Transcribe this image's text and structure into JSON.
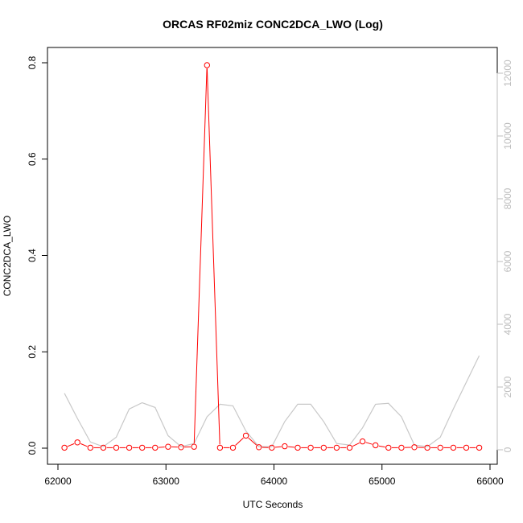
{
  "chart_data": {
    "type": "line",
    "title": "ORCAS RF02miz CONC2DCA_LWO (Log)",
    "xlabel": "UTC Seconds",
    "ylabel": "CONC2DCA_LWO",
    "xlim": [
      62000,
      66000
    ],
    "xticks": [
      62000,
      63000,
      64000,
      65000,
      66000
    ],
    "ylim": [
      0,
      0.8
    ],
    "yticks": [
      0.0,
      0.2,
      0.4,
      0.6,
      0.8
    ],
    "ytick_labels": [
      "0.0",
      "0.2",
      "0.4",
      "0.6",
      "0.8"
    ],
    "y2lim": [
      0,
      12000
    ],
    "y2ticks": [
      0,
      2000,
      4000,
      6000,
      8000,
      10000,
      12000
    ],
    "grid": false,
    "legend": "none",
    "series": [
      {
        "axis": "left",
        "color": "#ff0000",
        "style": "line+open-circles",
        "x": [
          62060,
          62180,
          62300,
          62420,
          62540,
          62660,
          62780,
          62900,
          63020,
          63140,
          63260,
          63380,
          63500,
          63620,
          63740,
          63860,
          63980,
          64100,
          64220,
          64340,
          64460,
          64580,
          64700,
          64820,
          64940,
          65060,
          65180,
          65300,
          65420,
          65540,
          65660,
          65780,
          65900
        ],
        "values": [
          0.001,
          0.012,
          0.001,
          0.001,
          0.001,
          0.001,
          0.001,
          0.001,
          0.003,
          0.002,
          0.003,
          0.795,
          0.001,
          0.001,
          0.026,
          0.002,
          0.001,
          0.004,
          0.001,
          0.001,
          0.001,
          0.001,
          0.001,
          0.014,
          0.006,
          0.001,
          0.001,
          0.002,
          0.001,
          0.001,
          0.001,
          0.001,
          0.001
        ]
      },
      {
        "axis": "right",
        "color": "#c8c8c8",
        "style": "line",
        "x": [
          62060,
          62180,
          62300,
          62420,
          62540,
          62660,
          62780,
          62900,
          63020,
          63140,
          63260,
          63380,
          63500,
          63620,
          63740,
          63860,
          63980,
          64100,
          64220,
          64340,
          64460,
          64580,
          64700,
          64820,
          64940,
          65060,
          65180,
          65300,
          65420,
          65540,
          65660,
          65780,
          65900
        ],
        "values": [
          1800,
          1000,
          250,
          100,
          400,
          1300,
          1500,
          1350,
          450,
          100,
          200,
          1050,
          1450,
          1400,
          600,
          100,
          100,
          900,
          1450,
          1450,
          900,
          200,
          150,
          700,
          1450,
          1480,
          1050,
          150,
          100,
          400,
          1300,
          2150,
          3000
        ]
      }
    ]
  }
}
